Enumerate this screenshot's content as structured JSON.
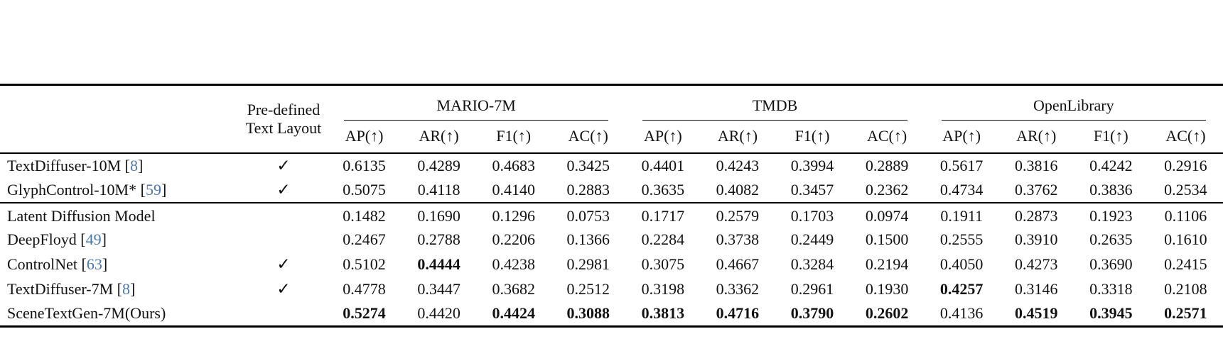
{
  "colors": {
    "citation_blue": "#4878b0",
    "text": "#111111",
    "rule": "#000000",
    "background": "#ffffff"
  },
  "header": {
    "predefined_label_line1": "Pre-defined",
    "predefined_label_line2": "Text Layout",
    "groups": [
      {
        "label": "MARIO-7M"
      },
      {
        "label": "TMDB"
      },
      {
        "label": "OpenLibrary"
      }
    ],
    "metrics": [
      "AP(↑)",
      "AR(↑)",
      "F1(↑)",
      "AC(↑)"
    ]
  },
  "table": {
    "checkmark_glyph": "✓",
    "rows": [
      {
        "model": "TextDiffuser-10M",
        "cite": "8",
        "predefined_layout": true,
        "group": 1,
        "values": [
          "0.6135",
          "0.4289",
          "0.4683",
          "0.3425",
          "0.4401",
          "0.4243",
          "0.3994",
          "0.2889",
          "0.5617",
          "0.3816",
          "0.4242",
          "0.2916"
        ],
        "bold": []
      },
      {
        "model": "GlyphControl-10M*",
        "cite": "59",
        "predefined_layout": true,
        "group": 1,
        "values": [
          "0.5075",
          "0.4118",
          "0.4140",
          "0.2883",
          "0.3635",
          "0.4082",
          "0.3457",
          "0.2362",
          "0.4734",
          "0.3762",
          "0.3836",
          "0.2534"
        ],
        "bold": []
      },
      {
        "model": "Latent Diffusion Model",
        "cite": null,
        "predefined_layout": false,
        "group": 2,
        "values": [
          "0.1482",
          "0.1690",
          "0.1296",
          "0.0753",
          "0.1717",
          "0.2579",
          "0.1703",
          "0.0974",
          "0.1911",
          "0.2873",
          "0.1923",
          "0.1106"
        ],
        "bold": []
      },
      {
        "model": "DeepFloyd",
        "cite": "49",
        "predefined_layout": false,
        "group": 2,
        "values": [
          "0.2467",
          "0.2788",
          "0.2206",
          "0.1366",
          "0.2284",
          "0.3738",
          "0.2449",
          "0.1500",
          "0.2555",
          "0.3910",
          "0.2635",
          "0.1610"
        ],
        "bold": []
      },
      {
        "model": "ControlNet",
        "cite": "63",
        "predefined_layout": true,
        "group": 2,
        "values": [
          "0.5102",
          "0.4444",
          "0.4238",
          "0.2981",
          "0.3075",
          "0.4667",
          "0.3284",
          "0.2194",
          "0.4050",
          "0.4273",
          "0.3690",
          "0.2415"
        ],
        "bold": [
          1
        ]
      },
      {
        "model": "TextDiffuser-7M",
        "cite": "8",
        "predefined_layout": true,
        "group": 2,
        "values": [
          "0.4778",
          "0.3447",
          "0.3682",
          "0.2512",
          "0.3198",
          "0.3362",
          "0.2961",
          "0.1930",
          "0.4257",
          "0.3146",
          "0.3318",
          "0.2108"
        ],
        "bold": [
          8
        ]
      },
      {
        "model": "SceneTextGen-7M(Ours)",
        "cite": null,
        "predefined_layout": false,
        "group": 2,
        "values": [
          "0.5274",
          "0.4420",
          "0.4424",
          "0.3088",
          "0.3813",
          "0.4716",
          "0.3790",
          "0.2602",
          "0.4136",
          "0.4519",
          "0.3945",
          "0.2571"
        ],
        "bold": [
          0,
          2,
          3,
          4,
          5,
          6,
          7,
          9,
          10,
          11
        ]
      }
    ]
  }
}
